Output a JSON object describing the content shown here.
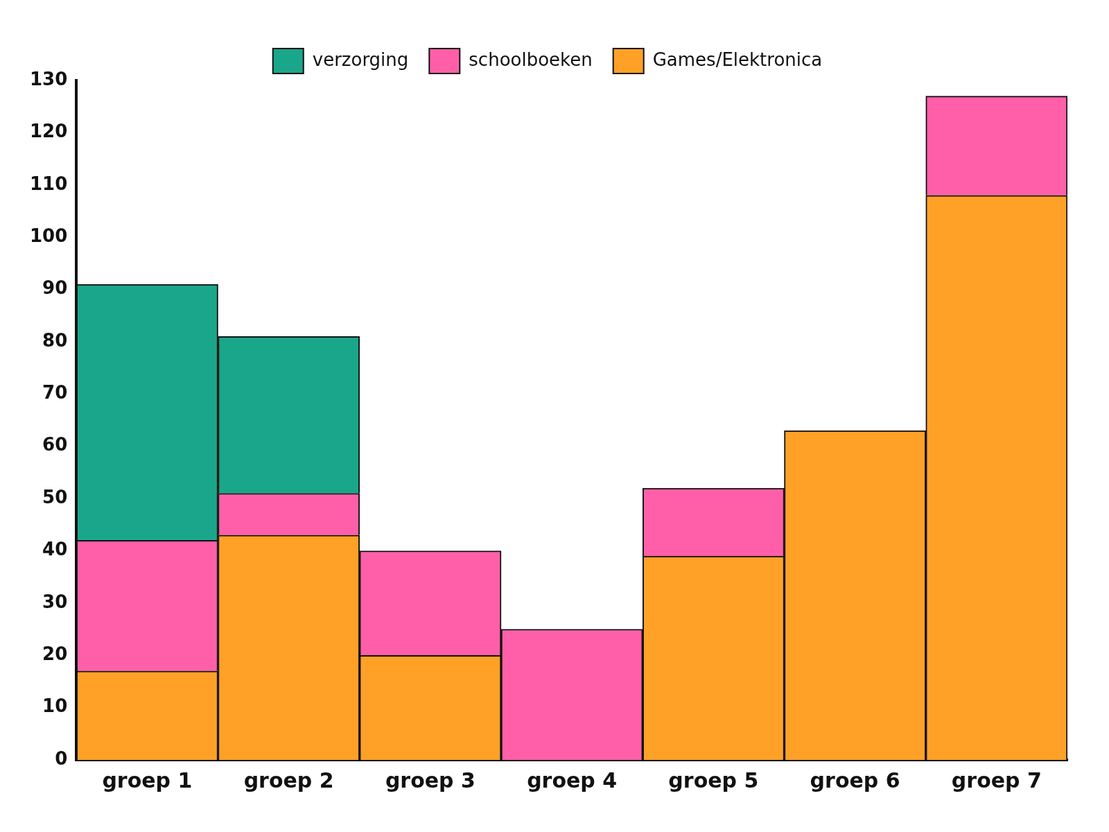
{
  "chart_data": {
    "type": "bar",
    "stacked": true,
    "categories": [
      "groep 1",
      "groep 2",
      "groep 3",
      "groep 4",
      "groep 5",
      "groep 6",
      "groep 7"
    ],
    "series": [
      {
        "name": "verzorging",
        "color": "#1aa68a",
        "values": [
          49,
          30,
          null,
          null,
          null,
          null,
          null
        ]
      },
      {
        "name": "schoolboeken",
        "color": "#ff5fa8",
        "values": [
          25,
          8,
          20,
          25,
          13,
          null,
          19
        ]
      },
      {
        "name": "Games/Elektronica",
        "color": "#ffa126",
        "values": [
          17,
          43,
          20,
          null,
          39,
          63,
          108
        ]
      }
    ],
    "ylim": [
      0,
      130
    ],
    "yticks": [
      0,
      10,
      20,
      30,
      40,
      50,
      60,
      70,
      80,
      90,
      100,
      110,
      120,
      130
    ],
    "grid": false,
    "legend": "top"
  }
}
